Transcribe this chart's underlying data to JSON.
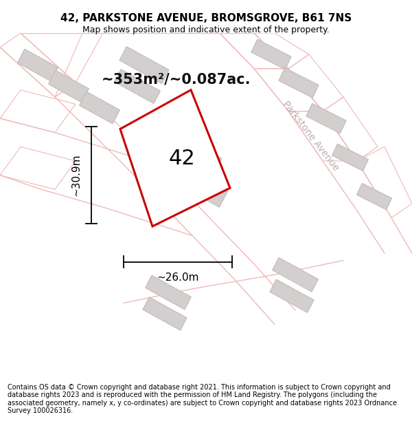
{
  "title": "42, PARKSTONE AVENUE, BROMSGROVE, B61 7NS",
  "subtitle": "Map shows position and indicative extent of the property.",
  "footer": "Contains OS data © Crown copyright and database right 2021. This information is subject to Crown copyright and database rights 2023 and is reproduced with the permission of HM Land Registry. The polygons (including the associated geometry, namely x, y co-ordinates) are subject to Crown copyright and database rights 2023 Ordnance Survey 100026316.",
  "area_label": "~353m²/~0.087ac.",
  "width_label": "~26.0m",
  "height_label": "~30.9m",
  "plot_number": "42",
  "street_label": "Parkstone Avenue",
  "bg_color": "#f7f4f4",
  "plot_fill": "#ffffff",
  "plot_edge_color": "#cc0000",
  "plot_edge_width": 2.2,
  "road_stroke": "#f0b8b8",
  "building_fill": "#d4cfcf",
  "building_edge": "#c0bbbb",
  "dim_line_color": "#000000",
  "title_fontsize": 11,
  "subtitle_fontsize": 9,
  "footer_fontsize": 7.0,
  "area_fontsize": 15,
  "number_fontsize": 22,
  "street_fontsize": 10,
  "dim_fontsize": 11
}
